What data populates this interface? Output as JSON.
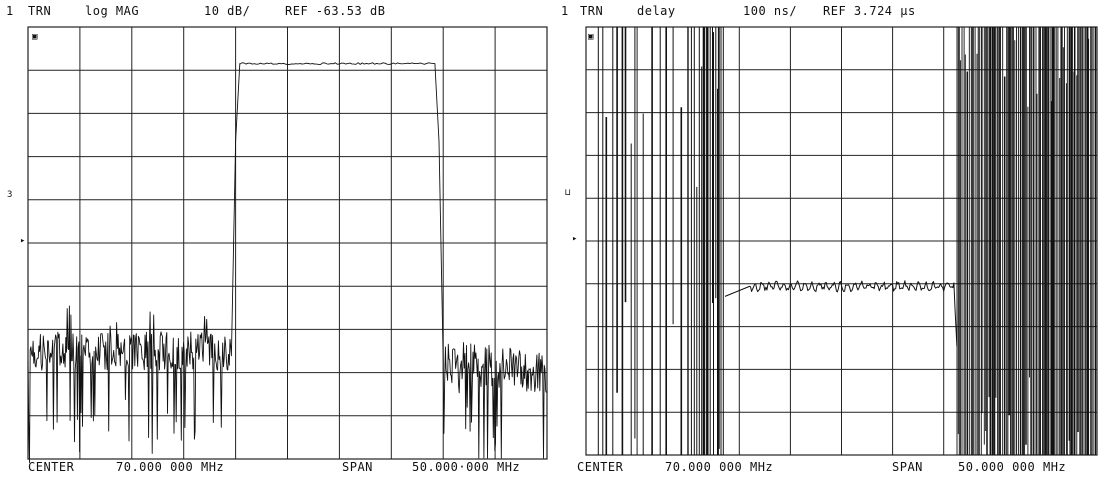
{
  "colors": {
    "ink": "#111111",
    "grid": "#222222",
    "background": "#ffffff"
  },
  "panels": [
    {
      "channel": "1",
      "meas": "TRN",
      "format": "log MAG",
      "scale": "10 dB/",
      "ref": "REF -63.53 dB",
      "badge": "▣",
      "side_mark_upper": "3",
      "side_mark_lower": "▸",
      "center_label": "CENTER",
      "center_value": "70.000 000 MHz",
      "span_label": "SPAN",
      "span_value": "50.000·000 MHz"
    },
    {
      "channel": "1",
      "meas": "TRN",
      "format": "delay",
      "scale": "100 ns/",
      "ref": "REF 3.724 µs",
      "badge": "▣",
      "side_mark_upper": "⊔",
      "side_mark_lower": "▸",
      "center_label": "CENTER",
      "center_value": "70.000 000 MHz",
      "span_label": "SPAN",
      "span_value": "50.000 000 MHz"
    }
  ],
  "chart_data": [
    {
      "type": "line",
      "title": "",
      "xlabel": "",
      "ylabel": "",
      "x_unit": "MHz",
      "y_unit": "dB",
      "xlim": [
        45,
        70
      ],
      "ylim": [
        -163.53,
        -63.53
      ],
      "grid": true,
      "series": [
        {
          "x": [
            45,
            54.8,
            55.0,
            55.2,
            64.6,
            64.8,
            65.0,
            70
          ],
          "y": [
            -138.5,
            -138.5,
            -90,
            -72.0,
            -72.0,
            -90,
            -141.0,
            -143.5
          ]
        }
      ]
    },
    {
      "type": "line",
      "title": "",
      "xlabel": "",
      "ylabel": "",
      "x_unit": "MHz",
      "y_unit": "µs",
      "xlim": [
        45,
        70
      ],
      "ylim": [
        3.724,
        2.724
      ],
      "grid": true,
      "series": [
        {
          "x": [
            51.8,
            53.0,
            58.0,
            63.0,
            61.5
          ],
          "y": [
            3.33,
            3.33,
            3.33,
            3.33,
            3.33
          ]
        }
      ]
    }
  ]
}
